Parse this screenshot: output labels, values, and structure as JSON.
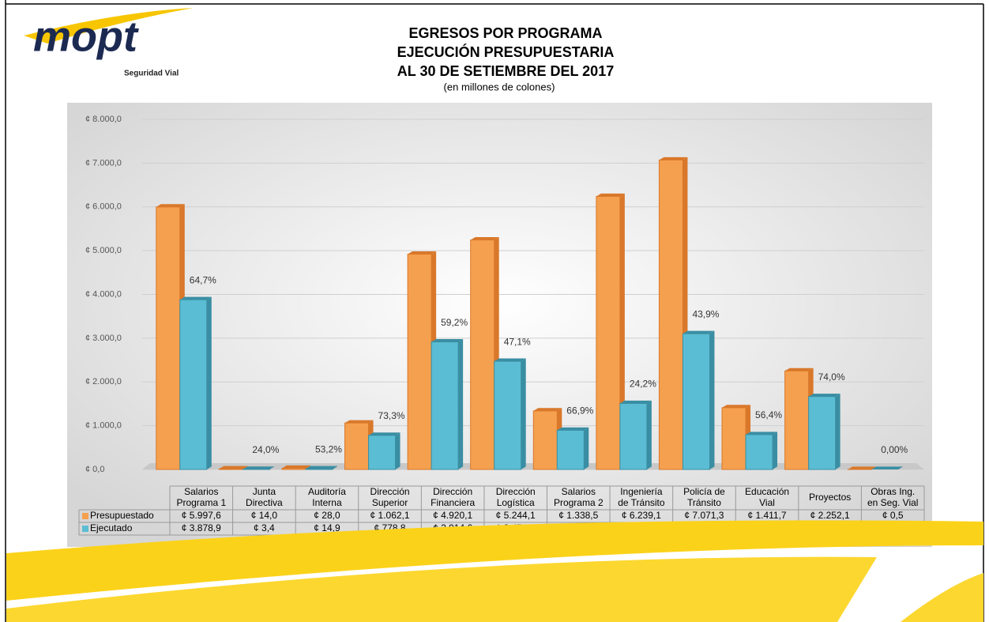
{
  "logo": {
    "text": "mopt",
    "tagline": "Seguridad Vial"
  },
  "chart_data": {
    "type": "bar",
    "title": [
      "EGRESOS POR PROGRAMA",
      "EJECUCIÓN PRESUPUESTARIA",
      "AL 30 DE SETIEMBRE DEL 2017"
    ],
    "subtitle": "(en millones de colones)",
    "categories": [
      [
        "Salarios",
        "Programa 1"
      ],
      [
        "Junta",
        "Directiva"
      ],
      [
        "Auditoría",
        "Interna"
      ],
      [
        "Dirección",
        "Superior"
      ],
      [
        "Dirección",
        "Financiera"
      ],
      [
        "Dirección",
        "Logística"
      ],
      [
        "Salarios",
        "Programa 2"
      ],
      [
        "Ingeniería",
        "de Tránsito"
      ],
      [
        "Policía de",
        "Tránsito"
      ],
      [
        "Educación",
        "Vial"
      ],
      [
        "Proyectos"
      ],
      [
        "Obras Ing.",
        "en Seg. Vial"
      ]
    ],
    "series": [
      {
        "name": "Presupuestado",
        "color": "#f5a04e",
        "side": "#d9782a",
        "values": [
          5997.6,
          14.0,
          28.0,
          1062.1,
          4920.1,
          5244.1,
          1338.5,
          6239.1,
          7071.3,
          1411.7,
          2252.1,
          0.5
        ],
        "value_labels": [
          "¢ 5.997,6",
          "¢ 14,0",
          "¢ 28,0",
          "¢ 1.062,1",
          "¢ 4.920,1",
          "¢ 5.244,1",
          "¢ 1.338,5",
          "¢ 6.239,1",
          "¢ 7.071,3",
          "¢ 1.411,7",
          "¢ 2.252,1",
          "¢ 0,5"
        ]
      },
      {
        "name": "Ejecutado",
        "color": "#5bbdd3",
        "side": "#3a8ea3",
        "values": [
          3878.9,
          3.4,
          14.9,
          778.8,
          2914.6,
          2472.0,
          895.6,
          1508.1,
          3101.6,
          795.7,
          1666.8,
          0.0
        ],
        "value_labels": [
          "¢ 3.878,9",
          "¢ 3,4",
          "¢ 14,9",
          "¢ 778,8",
          "¢ 2.914,6",
          "¢ 2.472,0",
          "¢ 895,6",
          "¢ 1.508,1",
          "¢ 3.101,6",
          "¢ 795,7",
          "¢ 1.666,8",
          "¢ 0,0"
        ]
      }
    ],
    "percent_labels": [
      "64,7%",
      "24,0%",
      "53,2%",
      "73,3%",
      "59,2%",
      "47,1%",
      "66,9%",
      "24,2%",
      "43,9%",
      "56,4%",
      "74,0%",
      "0,00%"
    ],
    "ylim": [
      0,
      8000
    ],
    "yticks": [
      {
        "value": 0,
        "label": "¢ 0,0"
      },
      {
        "value": 1000,
        "label": "¢ 1.000,0"
      },
      {
        "value": 2000,
        "label": "¢ 2.000,0"
      },
      {
        "value": 3000,
        "label": "¢ 3.000,0"
      },
      {
        "value": 4000,
        "label": "¢ 4.000,0"
      },
      {
        "value": 5000,
        "label": "¢ 5.000,0"
      },
      {
        "value": 6000,
        "label": "¢ 6.000,0"
      },
      {
        "value": 7000,
        "label": "¢ 7.000,0"
      },
      {
        "value": 8000,
        "label": "¢ 8.000,0"
      }
    ],
    "grid": true
  }
}
